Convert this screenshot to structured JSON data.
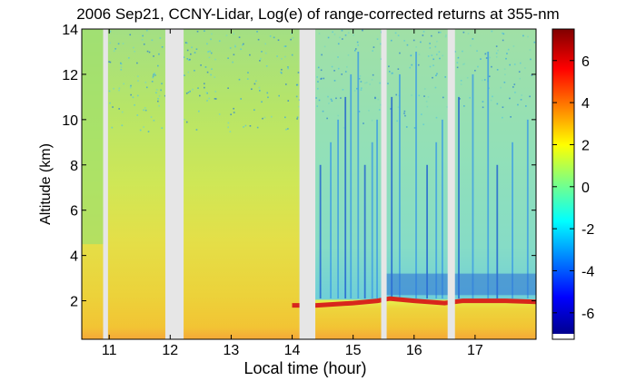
{
  "chart_data": {
    "type": "heatmap",
    "title": "2006 Sep21, CCNY-Lidar, Log(e) of range-corrected returns at 355-nm",
    "xlabel": "Local time (hour)",
    "ylabel": "Altitude (km)",
    "xlim": [
      10.55,
      18.0
    ],
    "ylim": [
      0.3,
      14
    ],
    "x_ticks": [
      "11",
      "12",
      "13",
      "14",
      "15",
      "16",
      "17"
    ],
    "y_ticks": [
      "2",
      "4",
      "6",
      "8",
      "10",
      "12",
      "14"
    ],
    "colorbar": {
      "range": [
        -7,
        7.5
      ],
      "ticks": [
        "6",
        "4",
        "2",
        "0",
        "-2",
        "-4",
        "-6"
      ],
      "colormap": "jet"
    },
    "data_gaps_hours": [
      [
        10.9,
        10.98
      ],
      [
        11.92,
        12.22
      ],
      [
        14.12,
        14.38
      ],
      [
        15.46,
        15.55
      ],
      [
        16.55,
        16.67
      ]
    ],
    "boundary_layer_top_km": [
      {
        "x": 14.0,
        "y": 1.8
      },
      {
        "x": 14.4,
        "y": 1.8
      },
      {
        "x": 15.0,
        "y": 1.9
      },
      {
        "x": 15.4,
        "y": 2.0
      },
      {
        "x": 15.6,
        "y": 2.1
      },
      {
        "x": 16.0,
        "y": 2.0
      },
      {
        "x": 16.5,
        "y": 1.9
      },
      {
        "x": 16.8,
        "y": 2.0
      },
      {
        "x": 17.5,
        "y": 2.0
      },
      {
        "x": 18.0,
        "y": 1.95
      }
    ],
    "colors": {
      "low_troposphere": "#e8cf3a",
      "mid_troposphere_clean": "#c6e85a",
      "upper_clean": "#a9e07a",
      "free_troposphere_afternoon": "#8fe0b6",
      "boundary_layer_top": "#d8261c",
      "surface": "#f5a838",
      "gap": "#e6e6e6"
    }
  }
}
